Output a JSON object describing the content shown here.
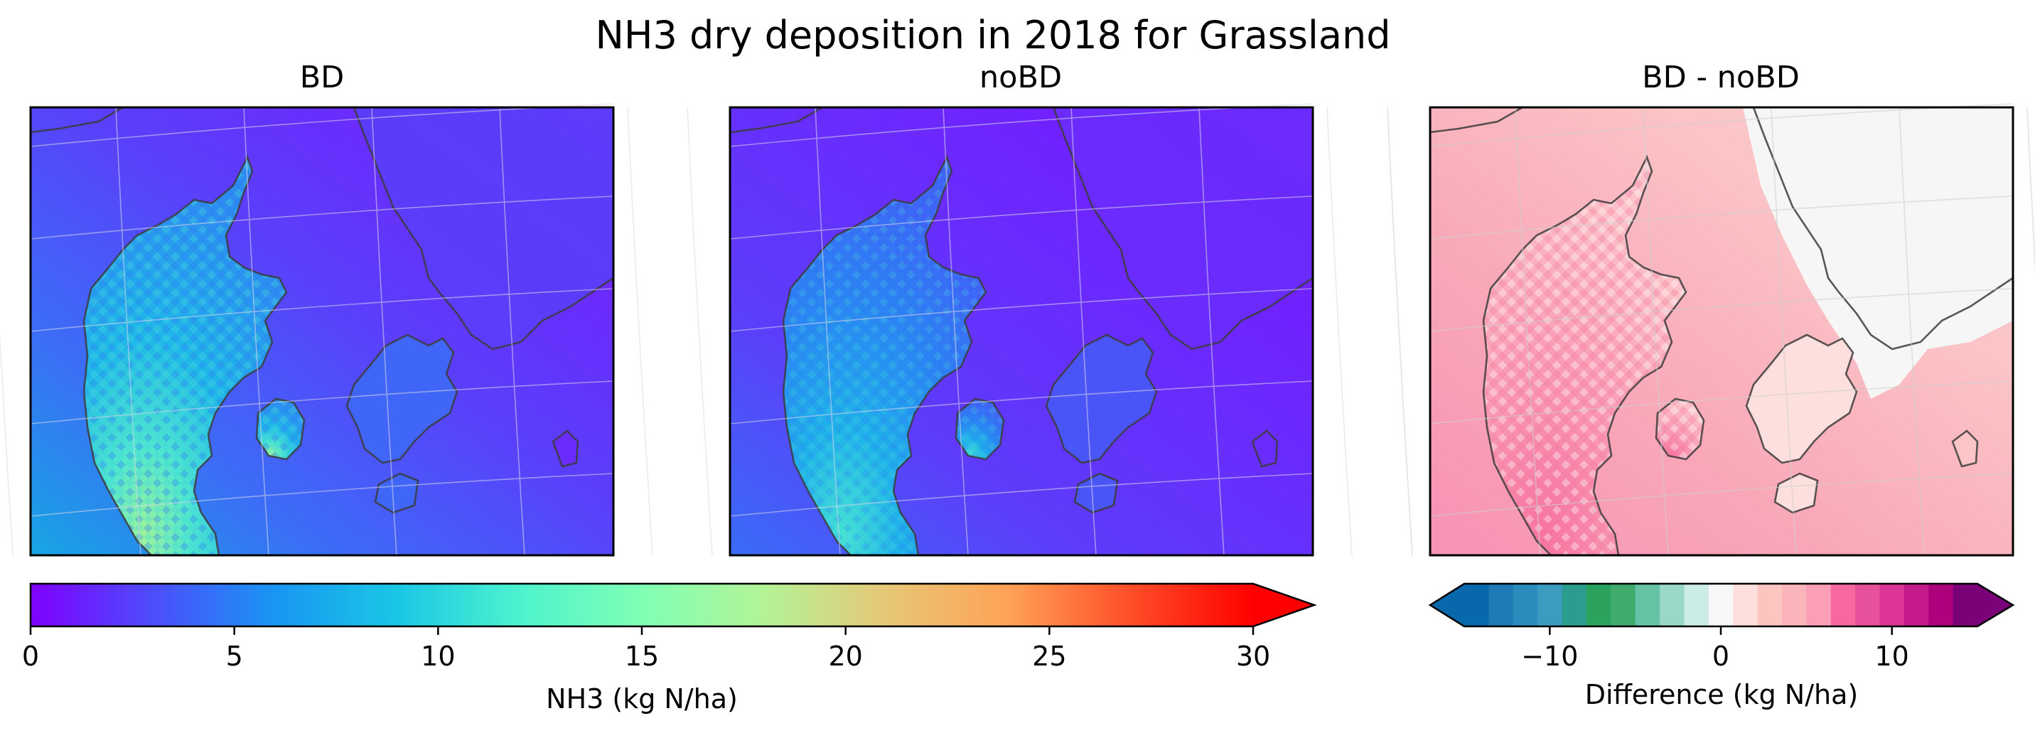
{
  "figure": {
    "title": "NH3 dry deposition in 2018 for Grassland"
  },
  "panels": [
    {
      "title": "BD",
      "variable": "NH3 dry deposition, BD scenario"
    },
    {
      "title": "noBD",
      "variable": "NH3 dry deposition, noBD scenario"
    },
    {
      "title": "BD - noBD",
      "variable": "Difference BD - noBD"
    }
  ],
  "colorbars": {
    "main": {
      "label": "NH3 (kg N/ha)",
      "ticks": [
        "0",
        "5",
        "10",
        "15",
        "20",
        "25",
        "30"
      ],
      "range": [
        0,
        30
      ],
      "extend": "max",
      "colormap": "rainbow"
    },
    "diff": {
      "label": "Difference (kg N/ha)",
      "ticks": [
        "−10",
        "0",
        "10"
      ],
      "range": [
        -15,
        15
      ],
      "extend": "both",
      "colormap": "diverging blue-green-white-pink-purple",
      "bins": [
        "#0868ac",
        "#1f7ab6",
        "#2b8cbe",
        "#3c9cc0",
        "#2a9d8f",
        "#2ca25f",
        "#3fac6e",
        "#66c2a4",
        "#99d8c9",
        "#ccece6",
        "#f7f7f7",
        "#fde0dd",
        "#fcc5c0",
        "#fbb4b9",
        "#fa9fb5",
        "#f768a1",
        "#e7509b",
        "#dd3497",
        "#c51b8a",
        "#ae017e",
        "#7a0177"
      ]
    }
  },
  "chart_data": [
    {
      "type": "heatmap",
      "title": "BD",
      "colorbar": "NH3 (kg N/ha)",
      "value_range": [
        0,
        30
      ],
      "typical_values": {
        "open_sea_east": 1,
        "sea_west": 4,
        "jutland_land": 8,
        "southwest_jutland": 14,
        "max_hotspot": 20
      }
    },
    {
      "type": "heatmap",
      "title": "noBD",
      "colorbar": "NH3 (kg N/ha)",
      "value_range": [
        0,
        30
      ],
      "typical_values": {
        "open_sea_east": 0.5,
        "sea_west": 1.5,
        "jutland_land": 6,
        "southwest_jutland": 10,
        "max_hotspot": 13
      }
    },
    {
      "type": "heatmap",
      "title": "BD - noBD",
      "colorbar": "Difference (kg N/ha)",
      "value_range": [
        -15,
        15
      ],
      "typical_values": {
        "northeast_sea": 0,
        "zealand": 2,
        "jutland_land": 3,
        "sea_west": 4,
        "southwest_coast": 6
      }
    }
  ]
}
